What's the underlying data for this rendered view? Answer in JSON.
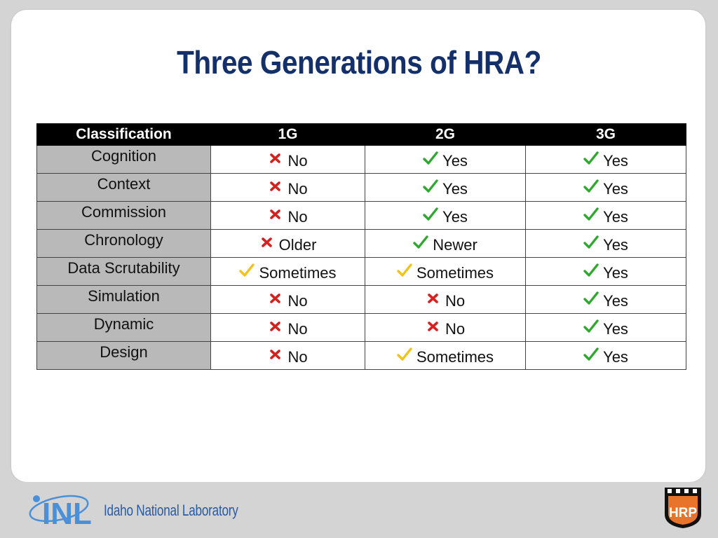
{
  "slide": {
    "title": "Three Generations of HRA?"
  },
  "table": {
    "headers": [
      "Classification",
      "1G",
      "2G",
      "3G"
    ],
    "rows": [
      {
        "label": "Cognition",
        "cells": [
          {
            "mark": "x",
            "text": "No"
          },
          {
            "mark": "check",
            "text": "Yes"
          },
          {
            "mark": "check",
            "text": "Yes"
          }
        ]
      },
      {
        "label": "Context",
        "cells": [
          {
            "mark": "x",
            "text": "No"
          },
          {
            "mark": "check",
            "text": "Yes"
          },
          {
            "mark": "check",
            "text": "Yes"
          }
        ]
      },
      {
        "label": "Commission",
        "cells": [
          {
            "mark": "x",
            "text": "No"
          },
          {
            "mark": "check",
            "text": "Yes"
          },
          {
            "mark": "check",
            "text": "Yes"
          }
        ]
      },
      {
        "label": "Chronology",
        "cells": [
          {
            "mark": "x",
            "text": "Older"
          },
          {
            "mark": "check",
            "text": "Newer"
          },
          {
            "mark": "check",
            "text": "Yes"
          }
        ]
      },
      {
        "label": "Data Scrutability",
        "cells": [
          {
            "mark": "partial",
            "text": "Sometimes"
          },
          {
            "mark": "partial",
            "text": "Sometimes"
          },
          {
            "mark": "check",
            "text": "Yes"
          }
        ]
      },
      {
        "label": "Simulation",
        "cells": [
          {
            "mark": "x",
            "text": "No"
          },
          {
            "mark": "x",
            "text": "No"
          },
          {
            "mark": "check",
            "text": "Yes"
          }
        ]
      },
      {
        "label": "Dynamic",
        "cells": [
          {
            "mark": "x",
            "text": "No"
          },
          {
            "mark": "x",
            "text": "No"
          },
          {
            "mark": "check",
            "text": "Yes"
          }
        ]
      },
      {
        "label": "Design",
        "cells": [
          {
            "mark": "x",
            "text": "No"
          },
          {
            "mark": "partial",
            "text": "Sometimes"
          },
          {
            "mark": "check",
            "text": "Yes"
          }
        ]
      }
    ]
  },
  "icons": {
    "check": "green-check-icon",
    "partial": "yellow-check-icon",
    "x": "red-x-icon"
  },
  "colors": {
    "title": "#13306b",
    "check": "#2ea82e",
    "partial": "#f2c21b",
    "x": "#d62020",
    "label_bg": "#b9b9b9",
    "header_bg": "#000000"
  },
  "footer": {
    "logo_text": "Idaho National Laboratory",
    "logo_letters": "INL",
    "hrp_logo_letters": "HRP"
  }
}
